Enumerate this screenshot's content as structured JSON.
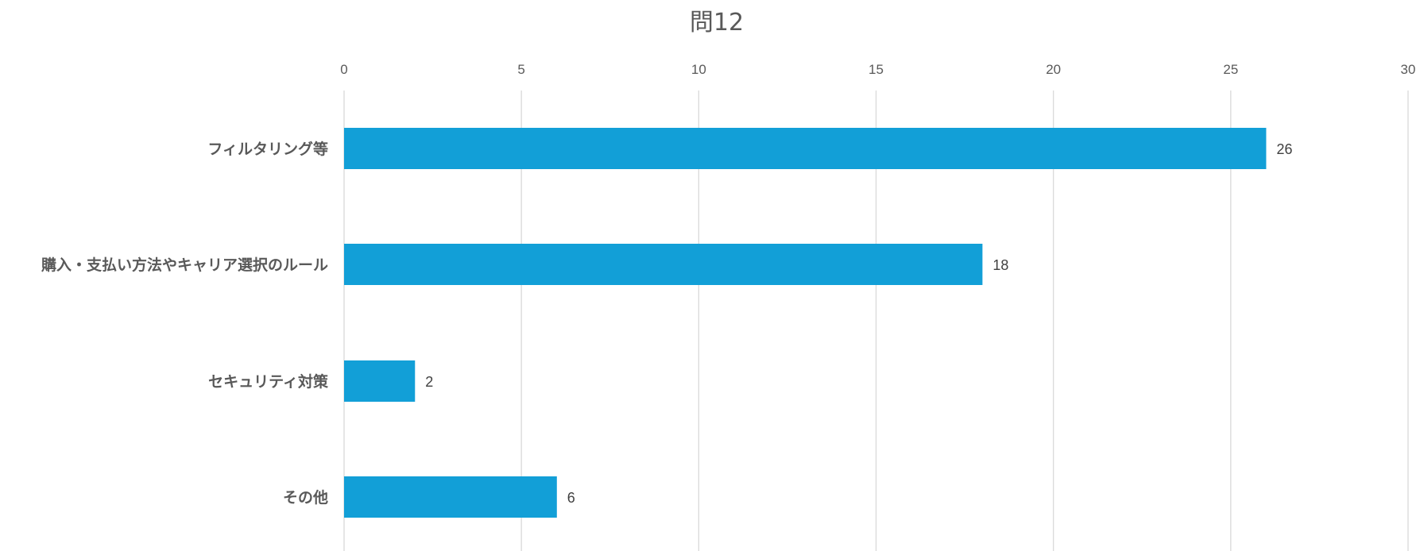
{
  "chart_data": {
    "type": "bar",
    "orientation": "horizontal",
    "title": "問12",
    "xlabel": "",
    "ylabel": "",
    "categories": [
      "フィルタリング等",
      "購入・支払い方法やキャリア選択のルール",
      "セキュリティ対策",
      "その他"
    ],
    "values": [
      26,
      18,
      2,
      6
    ],
    "xlim": [
      0,
      30
    ],
    "ticks": [
      "0",
      "5",
      "10",
      "15",
      "20",
      "25",
      "30"
    ],
    "tick_values": [
      0,
      5,
      10,
      15,
      20,
      25,
      30
    ],
    "axis_position": "top",
    "grid": true,
    "legend": "none",
    "data_labels": true,
    "bar_color": "#129fd7"
  }
}
